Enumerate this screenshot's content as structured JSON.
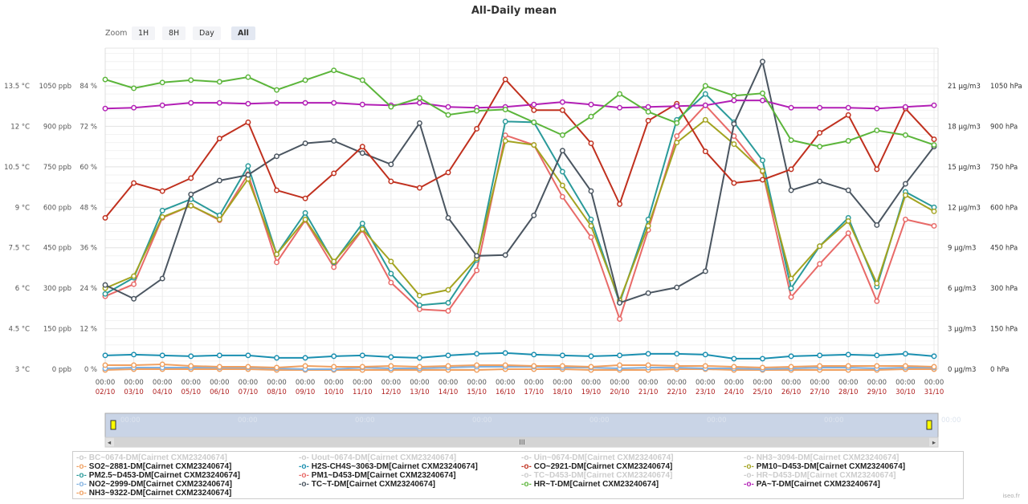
{
  "zoom": {
    "label": "Zoom",
    "buttons": [
      "1H",
      "8H",
      "Day",
      "All"
    ],
    "selected": "All"
  },
  "chart_data": {
    "type": "line",
    "title": "All-Daily mean",
    "x_times": [
      "00:00",
      "00:00",
      "00:00",
      "00:00",
      "00:00",
      "00:00",
      "00:00",
      "00:00",
      "00:00",
      "00:00",
      "00:00",
      "00:00",
      "00:00",
      "00:00",
      "00:00",
      "00:00",
      "00:00",
      "00:00",
      "00:00",
      "00:00",
      "00:00",
      "00:00",
      "00:00",
      "00:00",
      "00:00",
      "00:00",
      "00:00",
      "00:00",
      "00:00",
      "00:00"
    ],
    "x_dates": [
      "02/10",
      "03/10",
      "04/10",
      "05/10",
      "06/10",
      "07/10",
      "08/10",
      "09/10",
      "10/10",
      "11/10",
      "12/10",
      "13/10",
      "14/10",
      "15/10",
      "16/10",
      "17/10",
      "18/10",
      "19/10",
      "20/10",
      "21/10",
      "22/10",
      "23/10",
      "24/10",
      "25/10",
      "26/10",
      "27/10",
      "28/10",
      "29/10",
      "30/10",
      "31/10"
    ],
    "axes": {
      "temp": {
        "unit": "°C",
        "ticks": [
          "3 °C",
          "4.5 °C",
          "6 °C",
          "7.5 °C",
          "9 °C",
          "10.5 °C",
          "12 °C",
          "13.5 °C"
        ]
      },
      "ppb": {
        "unit": "ppb",
        "ticks": [
          "0 ppb",
          "150 ppb",
          "300 ppb",
          "450 ppb",
          "600 ppb",
          "750 ppb",
          "900 ppb",
          "1050 ppb"
        ]
      },
      "pct": {
        "unit": "%",
        "ticks": [
          "0 %",
          "12 %",
          "24 %",
          "36 %",
          "48 %",
          "60 %",
          "72 %",
          "84 %"
        ]
      },
      "ug": {
        "unit": "µg/m3",
        "ticks": [
          "0 µg/m3",
          "3 µg/m3",
          "6 µg/m3",
          "9 µg/m3",
          "12 µg/m3",
          "15 µg/m3",
          "18 µg/m3",
          "21 µg/m3"
        ]
      },
      "hpa": {
        "unit": "hPa",
        "ticks": [
          "0 hPa",
          "150 hPa",
          "300 hPa",
          "450 hPa",
          "600 hPa",
          "750 hPa",
          "900 hPa",
          "1050 hPa"
        ]
      }
    },
    "series": [
      {
        "name": "HR~T-DM[Cairnet CXM23240674]",
        "axis": "pct",
        "color": "#5bb53a",
        "values": [
          85.9,
          83.3,
          85.0,
          85.7,
          85.2,
          86.6,
          82.8,
          85.7,
          88.6,
          85.7,
          77.8,
          80.4,
          75.4,
          76.6,
          77.0,
          73.2,
          69.4,
          74.9,
          81.6,
          76.3,
          73.0,
          84.0,
          81.1,
          81.8,
          67.9,
          66.0,
          67.7,
          70.8,
          69.4,
          66.5
        ]
      },
      {
        "name": "PA~T-DM[Cairnet CXM23240674]",
        "axis": "hpa",
        "color": "#b21fb5",
        "values": [
          966,
          969,
          978,
          987,
          987,
          984,
          987,
          987,
          987,
          981,
          978,
          987,
          972,
          969,
          972,
          981,
          990,
          981,
          969,
          972,
          975,
          978,
          996,
          996,
          969,
          969,
          969,
          966,
          972,
          978
        ]
      },
      {
        "name": "CO~2921-DM[Cairnet CXM23240674]",
        "axis": "ppb",
        "color": "#c0301e",
        "values": [
          561,
          690,
          660,
          708,
          855,
          915,
          663,
          633,
          726,
          825,
          696,
          672,
          729,
          891,
          1074,
          960,
          960,
          837,
          612,
          921,
          984,
          807,
          690,
          702,
          741,
          876,
          942,
          741,
          966,
          852
        ]
      },
      {
        "name": "TC~T-DM[Cairnet CXM23240674]",
        "axis": "temp",
        "color": "#4a5560",
        "values": [
          6.12,
          5.61,
          6.36,
          9.48,
          9.99,
          10.2,
          10.89,
          11.37,
          11.46,
          11.01,
          10.59,
          12.12,
          8.61,
          7.2,
          7.23,
          8.7,
          11.1,
          9.6,
          5.46,
          5.82,
          6.03,
          6.63,
          12.09,
          14.4,
          9.63,
          9.96,
          9.63,
          8.34,
          9.87,
          11.25
        ]
      },
      {
        "name": "PM10~D453-DM[Cairnet CXM23240674]",
        "axis": "ug",
        "color": "#a3a320",
        "values": [
          6.0,
          6.9,
          11.28,
          12.12,
          11.1,
          14.1,
          8.52,
          11.1,
          7.98,
          10.38,
          7.98,
          5.46,
          5.88,
          8.22,
          16.92,
          16.62,
          13.62,
          10.62,
          5.1,
          10.62,
          16.8,
          18.48,
          16.68,
          14.7,
          6.72,
          9.12,
          10.98,
          6.36,
          12.9,
          11.7
        ]
      },
      {
        "name": "PM2.5~D453-DM[Cairnet CXM23240674]",
        "axis": "ug",
        "color": "#2a9a9a",
        "values": [
          5.58,
          6.78,
          11.76,
          12.6,
          11.4,
          15.06,
          8.52,
          11.58,
          7.92,
          10.8,
          7.08,
          4.74,
          4.92,
          8.1,
          18.36,
          18.3,
          14.64,
          11.1,
          4.92,
          11.1,
          18.48,
          20.4,
          18.3,
          15.48,
          6.0,
          9.12,
          11.22,
          6.12,
          13.14,
          12.0
        ]
      },
      {
        "name": "PM1~D453-DM[Cairnet CXM23240674]",
        "axis": "ug",
        "color": "#e86a68",
        "values": [
          5.4,
          6.3,
          11.22,
          12.12,
          11.04,
          14.46,
          7.92,
          11.04,
          7.56,
          10.32,
          6.42,
          4.44,
          4.32,
          7.32,
          17.34,
          16.62,
          12.78,
          9.78,
          3.72,
          10.32,
          17.28,
          19.56,
          17.28,
          14.64,
          5.34,
          7.8,
          10.08,
          5.04,
          11.1,
          10.62
        ]
      },
      {
        "name": "H2S-CH4S~3063-DM[Cairnet CXM23240674]",
        "axis": "ppb",
        "color": "#1a8fb0",
        "values": [
          51,
          54,
          51,
          48,
          51,
          51,
          42,
          42,
          48,
          51,
          45,
          42,
          51,
          57,
          60,
          54,
          51,
          48,
          51,
          57,
          57,
          54,
          39,
          39,
          48,
          51,
          54,
          51,
          57,
          48
        ]
      },
      {
        "name": "SO2~2881-DM[Cairnet CXM23240674]",
        "axis": "ppb",
        "color": "#f0a060",
        "values": [
          15,
          15,
          18,
          12,
          9,
          9,
          6,
          12,
          9,
          9,
          12,
          9,
          12,
          15,
          15,
          12,
          12,
          9,
          15,
          15,
          12,
          12,
          9,
          6,
          9,
          12,
          12,
          12,
          12,
          9
        ]
      },
      {
        "name": "NO2~2999-DM[Cairnet CXM23240674]",
        "axis": "ppb",
        "color": "#80b0e0",
        "values": [
          3,
          6,
          6,
          6,
          6,
          6,
          3,
          0,
          0,
          6,
          3,
          3,
          6,
          9,
          9,
          9,
          6,
          6,
          3,
          6,
          6,
          3,
          3,
          0,
          3,
          6,
          6,
          3,
          6,
          6
        ]
      },
      {
        "name": "NH3~9322-DM[Cairnet CXM23240674]",
        "axis": "ppb",
        "color": "#f0a060",
        "values": [
          -3,
          0,
          0,
          0,
          0,
          0,
          -3,
          -3,
          -3,
          -3,
          -3,
          -3,
          -3,
          -3,
          0,
          0,
          0,
          -3,
          -3,
          -3,
          0,
          0,
          -3,
          -3,
          -3,
          -3,
          -3,
          -3,
          0,
          0
        ]
      }
    ]
  },
  "legend": [
    {
      "label": "BC~0674-DM[Cairnet CXM23240674]",
      "color": "#ccc",
      "off": true
    },
    {
      "label": "Uout~0674-DM[Cairnet CXM23240674]",
      "color": "#ccc",
      "off": true
    },
    {
      "label": "Uin~0674-DM[Cairnet CXM23240674]",
      "color": "#ccc",
      "off": true
    },
    {
      "label": "NH3~3094-DM[Cairnet CXM23240674]",
      "color": "#ccc",
      "off": true
    },
    {
      "label": "SO2~2881-DM[Cairnet CXM23240674]",
      "color": "#f0a060"
    },
    {
      "label": "H2S-CH4S~3063-DM[Cairnet CXM23240674]",
      "color": "#1a8fb0"
    },
    {
      "label": "CO~2921-DM[Cairnet CXM23240674]",
      "color": "#c0301e"
    },
    {
      "label": "PM10~D453-DM[Cairnet CXM23240674]",
      "color": "#a3a320"
    },
    {
      "label": "PM2.5~D453-DM[Cairnet CXM23240674]",
      "color": "#2a9a9a"
    },
    {
      "label": "PM1~D453-DM[Cairnet CXM23240674]",
      "color": "#e86a68"
    },
    {
      "label": "TC~D453-DM[Cairnet CXM23240674]",
      "color": "#ccc",
      "off": true
    },
    {
      "label": "HR~D453-DM[Cairnet CXM23240674]",
      "color": "#ccc",
      "off": true
    },
    {
      "label": "NO2~2999-DM[Cairnet CXM23240674]",
      "color": "#80b0e0"
    },
    {
      "label": "TC~T-DM[Cairnet CXM23240674]",
      "color": "#4a5560"
    },
    {
      "label": "HR~T-DM[Cairnet CXM23240674]",
      "color": "#5bb53a"
    },
    {
      "label": "PA~T-DM[Cairnet CXM23240674]",
      "color": "#b21fb5"
    },
    {
      "label": "NH3~9322-DM[Cairnet CXM23240674]",
      "color": "#f0a060"
    }
  ],
  "navigator": {
    "tick_label": "00:00"
  },
  "credit": "iseo.fr"
}
